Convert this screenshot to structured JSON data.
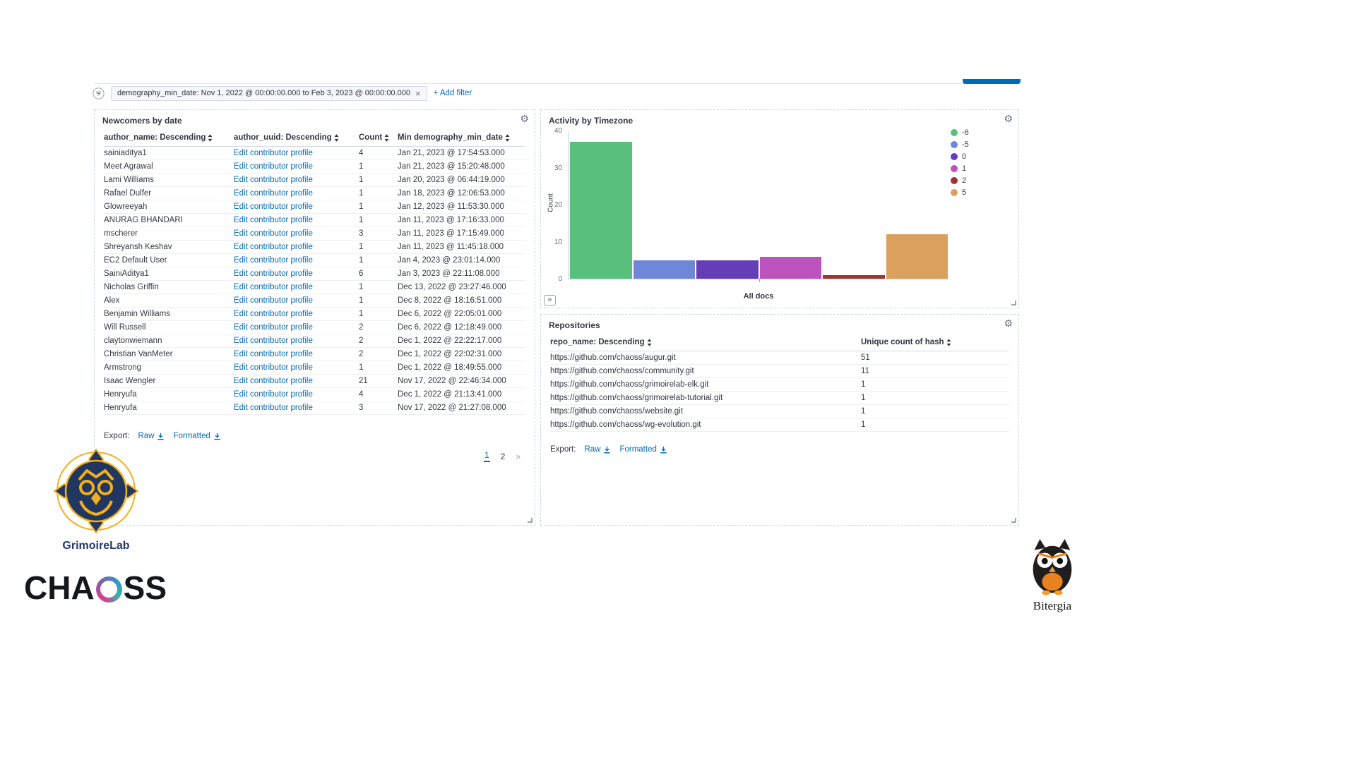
{
  "icons": {
    "gear": "⚙",
    "close": "×",
    "legend_toggle": "≡"
  },
  "filters": {
    "pill_text": "demography_min_date: Nov 1, 2022 @ 00:00:00.000 to Feb 3, 2023 @ 00:00:00.000",
    "remove": "×",
    "add_filter": "+ Add filter"
  },
  "newcomers": {
    "title": "Newcomers by date",
    "columns": [
      "author_name: Descending",
      "author_uuid: Descending",
      "Count",
      "Min demography_min_date"
    ],
    "rows": [
      {
        "author": "sainiaditya1",
        "link": "Edit contributor profile",
        "count": "4",
        "date": "Jan 21, 2023 @ 17:54:53.000"
      },
      {
        "author": "Meet Agrawal",
        "link": "Edit contributor profile",
        "count": "1",
        "date": "Jan 21, 2023 @ 15:20:48.000"
      },
      {
        "author": "Lami Williams",
        "link": "Edit contributor profile",
        "count": "1",
        "date": "Jan 20, 2023 @ 06:44:19.000"
      },
      {
        "author": "Rafael Dulfer",
        "link": "Edit contributor profile",
        "count": "1",
        "date": "Jan 18, 2023 @ 12:06:53.000"
      },
      {
        "author": "Glowreeyah",
        "link": "Edit contributor profile",
        "count": "1",
        "date": "Jan 12, 2023 @ 11:53:30.000"
      },
      {
        "author": "ANURAG BHANDARI",
        "link": "Edit contributor profile",
        "count": "1",
        "date": "Jan 11, 2023 @ 17:16:33.000"
      },
      {
        "author": "mscherer",
        "link": "Edit contributor profile",
        "count": "3",
        "date": "Jan 11, 2023 @ 17:15:49.000"
      },
      {
        "author": "Shreyansh Keshav",
        "link": "Edit contributor profile",
        "count": "1",
        "date": "Jan 11, 2023 @ 11:45:18.000"
      },
      {
        "author": "EC2 Default User",
        "link": "Edit contributor profile",
        "count": "1",
        "date": "Jan 4, 2023 @ 23:01:14.000"
      },
      {
        "author": "SainiAditya1",
        "link": "Edit contributor profile",
        "count": "6",
        "date": "Jan 3, 2023 @ 22:11:08.000"
      },
      {
        "author": "Nicholas Griffin",
        "link": "Edit contributor profile",
        "count": "1",
        "date": "Dec 13, 2022 @ 23:27:46.000"
      },
      {
        "author": "Alex",
        "link": "Edit contributor profile",
        "count": "1",
        "date": "Dec 8, 2022 @ 18:16:51.000"
      },
      {
        "author": "Benjamin Williams",
        "link": "Edit contributor profile",
        "count": "1",
        "date": "Dec 6, 2022 @ 22:05:01.000"
      },
      {
        "author": "Will Russell",
        "link": "Edit contributor profile",
        "count": "2",
        "date": "Dec 6, 2022 @ 12:18:49.000"
      },
      {
        "author": "claytonwiemann",
        "link": "Edit contributor profile",
        "count": "2",
        "date": "Dec 1, 2022 @ 22:22:17.000"
      },
      {
        "author": "Christian VanMeter",
        "link": "Edit contributor profile",
        "count": "2",
        "date": "Dec 1, 2022 @ 22:02:31.000"
      },
      {
        "author": "Armstrong",
        "link": "Edit contributor profile",
        "count": "1",
        "date": "Dec 1, 2022 @ 18:49:55.000"
      },
      {
        "author": "Isaac Wengler",
        "link": "Edit contributor profile",
        "count": "21",
        "date": "Nov 17, 2022 @ 22:46:34.000"
      },
      {
        "author": "Henryufa",
        "link": "Edit contributor profile",
        "count": "4",
        "date": "Dec 1, 2022 @ 21:13:41.000"
      },
      {
        "author": "Henryufa",
        "link": "Edit contributor profile",
        "count": "3",
        "date": "Nov 17, 2022 @ 21:27:08.000"
      }
    ],
    "export_label": "Export:",
    "raw_label": "Raw",
    "formatted_label": "Formatted",
    "pagination": [
      {
        "label": "1",
        "active": true
      },
      {
        "label": "2",
        "active": false
      },
      {
        "label": "»",
        "active": false
      }
    ]
  },
  "timezone": {
    "title": "Activity by Timezone"
  },
  "chart_data": {
    "type": "bar",
    "title": "Activity by Timezone",
    "categories": [
      "All docs"
    ],
    "series": [
      {
        "name": "-6",
        "values": [
          37
        ],
        "color": "#57c17b"
      },
      {
        "name": "-5",
        "values": [
          5
        ],
        "color": "#6f87d8"
      },
      {
        "name": "0",
        "values": [
          5
        ],
        "color": "#663db8"
      },
      {
        "name": "1",
        "values": [
          6
        ],
        "color": "#bc52bc"
      },
      {
        "name": "2",
        "values": [
          1
        ],
        "color": "#9e3533"
      },
      {
        "name": "5",
        "values": [
          12
        ],
        "color": "#daa05d"
      }
    ],
    "xlabel": "All docs",
    "ylabel": "Count",
    "ylim": [
      0,
      40
    ],
    "yticks": [
      0,
      10,
      20,
      30,
      40
    ],
    "legend_position": "top-right",
    "grid": false
  },
  "repositories": {
    "title": "Repositories",
    "columns": [
      "repo_name: Descending",
      "Unique count of hash"
    ],
    "rows": [
      {
        "repo": "https://github.com/chaoss/augur.git",
        "count": "51"
      },
      {
        "repo": "https://github.com/chaoss/community.git",
        "count": "11"
      },
      {
        "repo": "https://github.com/chaoss/grimoirelab-elk.git",
        "count": "1"
      },
      {
        "repo": "https://github.com/chaoss/grimoirelab-tutorial.git",
        "count": "1"
      },
      {
        "repo": "https://github.com/chaoss/website.git",
        "count": "1"
      },
      {
        "repo": "https://github.com/chaoss/wg-evolution.git",
        "count": "1"
      }
    ],
    "export_label": "Export:",
    "raw_label": "Raw",
    "formatted_label": "Formatted"
  },
  "branding": {
    "grimoirelab_label": "GrimoireLab",
    "chaoss_part1": "CHA",
    "chaoss_part2": "SS",
    "bitergia_label": "Bitergia",
    "colors": {
      "grimoire_navy": "#21375f",
      "grimoire_yellow": "#f2b01e",
      "bitergia_orange": "#e8821e",
      "link_blue": "#006bb4"
    }
  }
}
